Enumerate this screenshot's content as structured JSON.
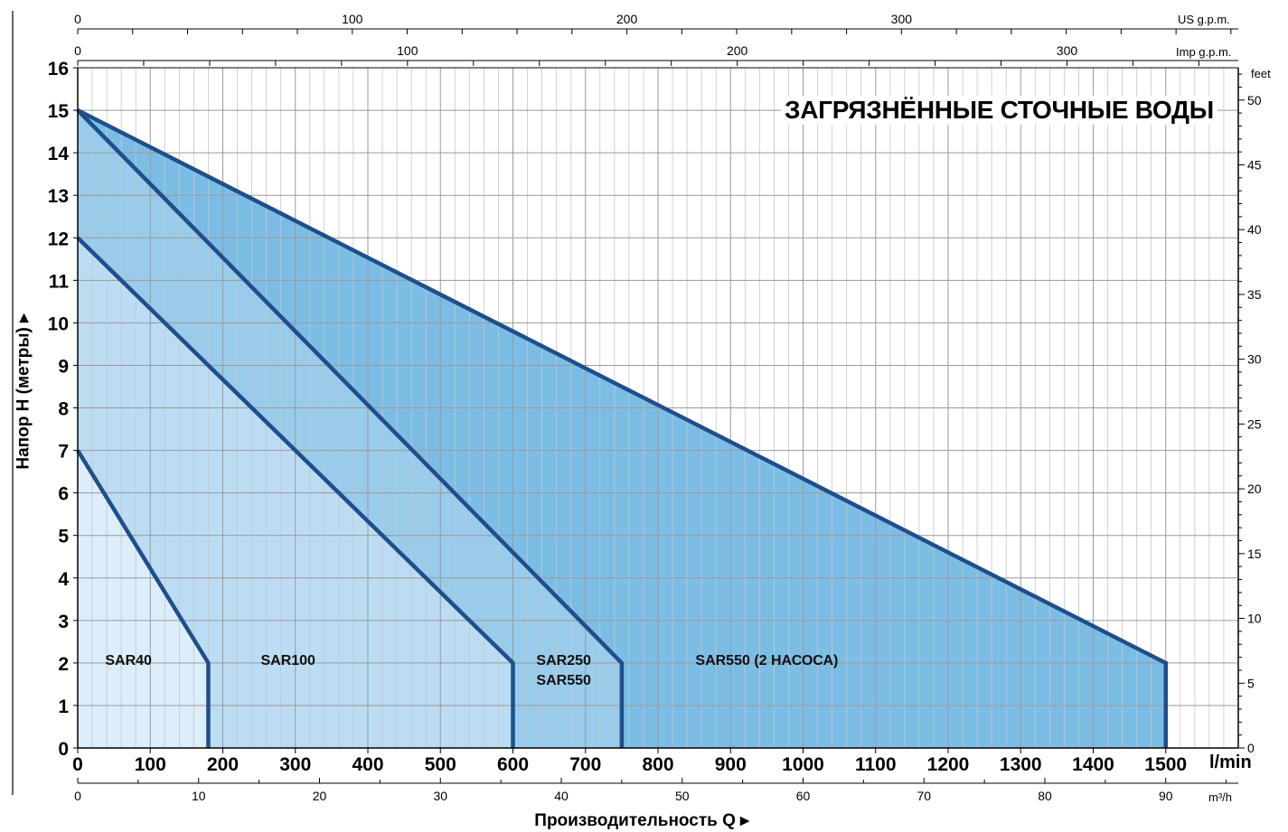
{
  "chart_data": {
    "type": "area",
    "title": "ЗАГРЯЗНЁННЫЕ СТОЧНЫЕ ВОДЫ",
    "xlabel": "Производительность Q ▸",
    "ylabel": "Напор H (метры) ▸",
    "xlim": [
      0,
      1600
    ],
    "ylim": [
      0,
      16
    ],
    "grid": true,
    "x_unit": "l/min",
    "x_ticks": [
      0,
      100,
      200,
      300,
      400,
      500,
      600,
      700,
      800,
      900,
      1000,
      1100,
      1200,
      1300,
      1400,
      1500
    ],
    "y_ticks": [
      0,
      1,
      2,
      3,
      4,
      5,
      6,
      7,
      8,
      9,
      10,
      11,
      12,
      13,
      14,
      15,
      16
    ],
    "secondary_axes": {
      "us_gpm": {
        "unit": "US g.p.m.",
        "ticks": [
          0,
          100,
          200,
          300
        ],
        "per_lmin": 0.26417
      },
      "imp_gpm": {
        "unit": "Imp g.p.m.",
        "ticks": [
          0,
          100,
          200,
          300
        ],
        "per_lmin": 0.21997
      },
      "m3h": {
        "unit": "m³/h",
        "ticks": [
          0,
          10,
          20,
          30,
          40,
          50,
          60,
          70,
          80,
          90
        ],
        "per_lmin": 0.06
      },
      "feet": {
        "unit": "feet",
        "ticks": [
          0,
          5,
          10,
          15,
          20,
          25,
          30,
          35,
          40,
          45,
          50
        ],
        "per_m": 3.2808
      }
    },
    "series": [
      {
        "name": "SAR550 (2 НАСОСА)",
        "x": [
          0,
          1500,
          1500
        ],
        "y": [
          15,
          2,
          0
        ],
        "color": "#7cbde5",
        "label_at": [
          950,
          2
        ]
      },
      {
        "name": "SAR250 SAR550",
        "x": [
          0,
          750,
          750
        ],
        "y": [
          15,
          2,
          0
        ],
        "color": "#99cbeb",
        "label_at": [
          670,
          2
        ]
      },
      {
        "name": "SAR100",
        "x": [
          0,
          600,
          600
        ],
        "y": [
          12,
          2,
          0
        ],
        "color": "#bcdcf3",
        "label_at": [
          290,
          2
        ]
      },
      {
        "name": "SAR40",
        "x": [
          0,
          180,
          180
        ],
        "y": [
          7,
          2,
          0
        ],
        "color": "#dceefa",
        "label_at": [
          70,
          2
        ]
      }
    ],
    "line_color": "#1f4e8c",
    "title_color": "#1a56a0"
  }
}
